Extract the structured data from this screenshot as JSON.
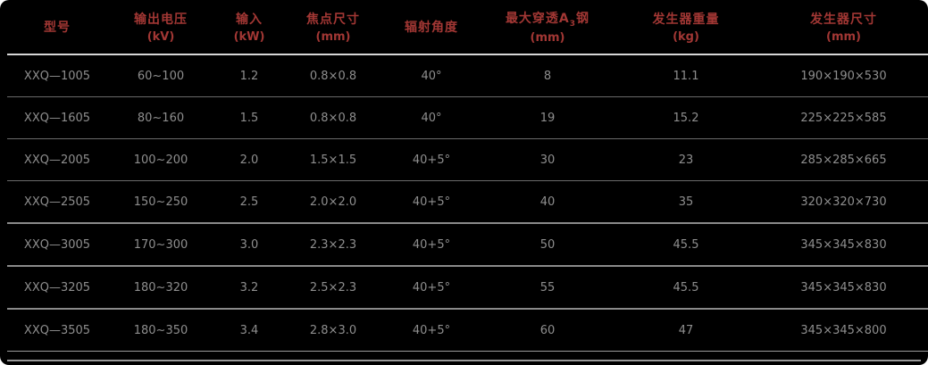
{
  "colors": {
    "background": "#000000",
    "header_text": "#a23734",
    "body_text": "#8e8e8e",
    "row_divider": "#6a6a6a",
    "header_divider": "#d6d6d6",
    "bottom_rule": "#9a9a9a"
  },
  "table": {
    "columns": [
      {
        "key": "model",
        "label": "型号",
        "unit": ""
      },
      {
        "key": "output-voltage",
        "label": "输出电压",
        "unit": "(kV)"
      },
      {
        "key": "input-power",
        "label": "输入",
        "unit": "(kW)"
      },
      {
        "key": "focal-spot-size",
        "label": "焦点尺寸",
        "unit": "(mm)"
      },
      {
        "key": "radiation-angle",
        "label": "辐射角度",
        "unit": ""
      },
      {
        "key": "max-penetration",
        "label": "最大穿透A",
        "sub": "3",
        "label2": "钢",
        "unit": "(mm)"
      },
      {
        "key": "generator-weight",
        "label": "发生器重量",
        "unit": "(kg)"
      },
      {
        "key": "generator-size",
        "label": "发生器尺寸",
        "unit": "(mm)"
      }
    ],
    "rows": [
      [
        "XXQ—1005",
        "60~100",
        "1.2",
        "0.8×0.8",
        "40°",
        "8",
        "11.1",
        "190×190×530"
      ],
      [
        "XXQ—1605",
        "80~160",
        "1.5",
        "0.8×0.8",
        "40°",
        "19",
        "15.2",
        "225×225×585"
      ],
      [
        "XXQ—2005",
        "100~200",
        "2.0",
        "1.5×1.5",
        "40+5°",
        "30",
        "23",
        "285×285×665"
      ],
      [
        "XXQ—2505",
        "150~250",
        "2.5",
        "2.0×2.0",
        "40+5°",
        "40",
        "35",
        "320×320×730"
      ],
      [
        "XXQ—3005",
        "170~300",
        "3.0",
        "2.3×2.3",
        "40+5°",
        "50",
        "45.5",
        "345×345×830"
      ],
      [
        "XXQ—3205",
        "180~320",
        "3.2",
        "2.5×2.3",
        "40+5°",
        "55",
        "45.5",
        "345×345×830"
      ],
      [
        "XXQ—3505",
        "180~350",
        "3.4",
        "2.8×3.0",
        "40+5°",
        "60",
        "47",
        "345×345×800"
      ]
    ]
  }
}
